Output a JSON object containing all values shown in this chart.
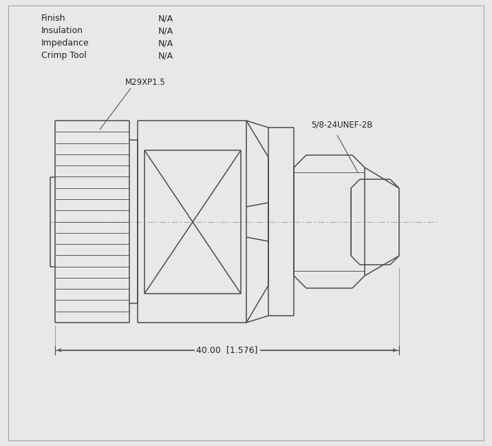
{
  "bg_color": "#e8e8e8",
  "line_color": "#4a4a4a",
  "centerline_color": "#aaaaaa",
  "text_color": "#222222",
  "title_props": [
    {
      "label": "Finish",
      "value": "N/A"
    },
    {
      "label": "Insulation",
      "value": "N/A"
    },
    {
      "label": "Impedance",
      "value": "N/A"
    },
    {
      "label": "Crimp Tool",
      "value": "N/A"
    }
  ],
  "annotation_m29": "M29XP1.5",
  "annotation_unef": "5/8-24UNEF-2B",
  "dim_text": "40.00  [1.576]",
  "line_width": 1.1,
  "thin_line": 0.65
}
